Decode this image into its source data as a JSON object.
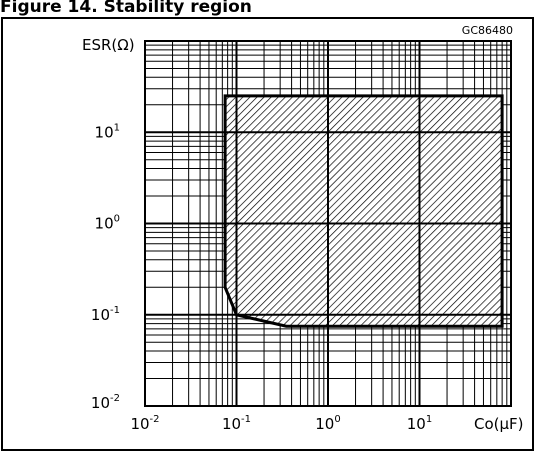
{
  "header": {
    "title": "Figure 14. Stability region"
  },
  "figure": {
    "code": "GC86480"
  },
  "colors": {
    "ink": "#000000",
    "background": "#ffffff"
  },
  "chart_data": {
    "type": "area",
    "title": "",
    "xlabel": "Co(μF)",
    "ylabel": "ESR(Ω)",
    "x_scale": "log",
    "y_scale": "log",
    "xlim": [
      0.01,
      100
    ],
    "ylim": [
      0.01,
      100
    ],
    "grid": true,
    "x_ticks": [
      {
        "base": "10",
        "exp": "-2",
        "value": 0.01
      },
      {
        "base": "10",
        "exp": "-1",
        "value": 0.1
      },
      {
        "base": "10",
        "exp": "0",
        "value": 1
      },
      {
        "base": "10",
        "exp": "1",
        "value": 10
      }
    ],
    "y_ticks": [
      {
        "base": "10",
        "exp": "-2",
        "value": 0.01
      },
      {
        "base": "10",
        "exp": "-1",
        "value": 0.1
      },
      {
        "base": "10",
        "exp": "0",
        "value": 1
      },
      {
        "base": "10",
        "exp": "1",
        "value": 10
      }
    ],
    "series": [
      {
        "fill": "hatched",
        "boundary": [
          {
            "x": 0.075,
            "y": 25
          },
          {
            "x": 80,
            "y": 25
          },
          {
            "x": 80,
            "y": 0.075
          },
          {
            "x": 0.35,
            "y": 0.075
          },
          {
            "x": 0.1,
            "y": 0.1
          },
          {
            "x": 0.075,
            "y": 0.2
          }
        ]
      }
    ]
  }
}
